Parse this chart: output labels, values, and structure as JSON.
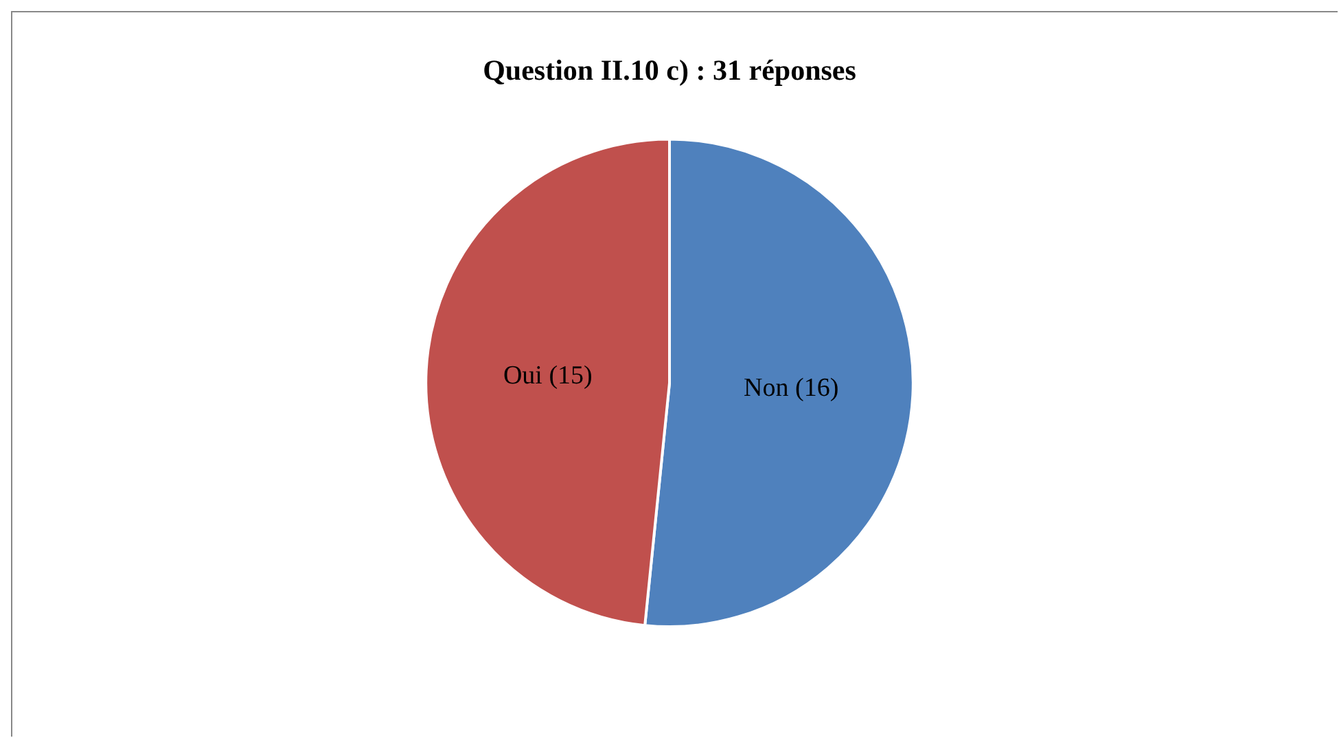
{
  "chart_data": {
    "type": "pie",
    "title": "Question II.10 c) : 31 réponses",
    "categories": [
      "Non",
      "Oui"
    ],
    "values": [
      16,
      15
    ],
    "colors": [
      "#4f81bd",
      "#c0504d"
    ],
    "value_labels": [
      "(16)",
      "(15)"
    ],
    "legend": false
  }
}
